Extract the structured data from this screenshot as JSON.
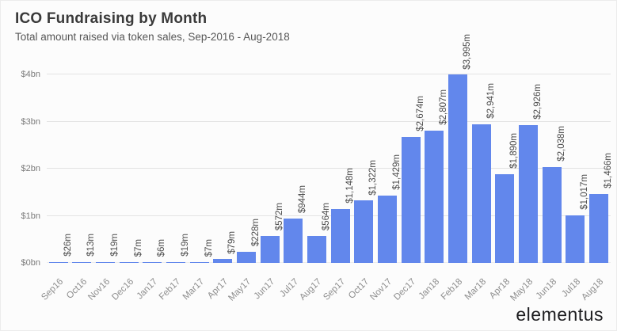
{
  "header": {
    "title": "ICO Fundraising by Month",
    "subtitle": "Total amount raised via token sales, Sep-2016 - Aug-2018"
  },
  "branding": {
    "logo_text": "elementus"
  },
  "chart_data": {
    "type": "bar",
    "title": "ICO Fundraising by Month",
    "subtitle": "Total amount raised via token sales, Sep-2016 - Aug-2018",
    "categories": [
      "Sep16",
      "Oct16",
      "Nov16",
      "Dec16",
      "Jan17",
      "Feb17",
      "Mar17",
      "Apr17",
      "May17",
      "Jun17",
      "Jul17",
      "Aug17",
      "Sep17",
      "Oct17",
      "Nov17",
      "Dec17",
      "Jan18",
      "Feb18",
      "Mar18",
      "Apr18",
      "May18",
      "Jun18",
      "Jul18",
      "Aug18"
    ],
    "values": [
      26,
      13,
      19,
      7,
      6,
      19,
      7,
      79,
      228,
      572,
      944,
      564,
      1148,
      1322,
      1429,
      2674,
      2807,
      3995,
      2941,
      1890,
      2926,
      2038,
      1017,
      1466
    ],
    "value_labels": [
      "$26m",
      "$13m",
      "$19m",
      "$7m",
      "$6m",
      "$19m",
      "$7m",
      "$79m",
      "$228m",
      "$572m",
      "$944m",
      "$564m",
      "$1,148m",
      "$1,322m",
      "$1,429m",
      "$2,674m",
      "$2,807m",
      "$3,995m",
      "$2,941m",
      "$1,890m",
      "$2,926m",
      "$2,038m",
      "$1,017m",
      "$1,466m"
    ],
    "unit": "millions USD",
    "xlabel": "",
    "ylabel": "",
    "y_ticks": [
      "$0bn",
      "$1bn",
      "$2bn",
      "$3bn",
      "$4bn"
    ],
    "ylim": [
      0,
      4000
    ],
    "grid": true,
    "legend": "none",
    "bar_color": "#6287ec",
    "value_label_rotation": -90,
    "x_label_rotation": -45
  }
}
